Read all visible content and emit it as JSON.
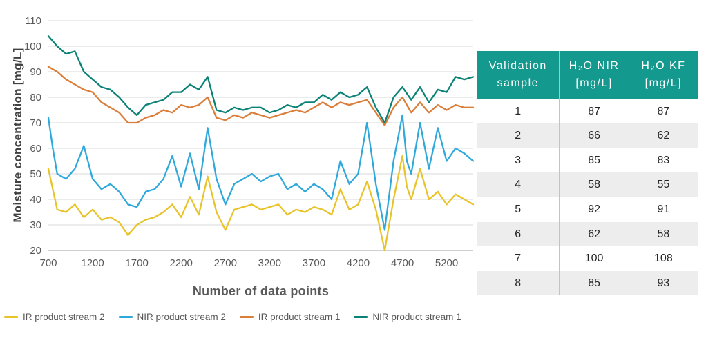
{
  "chart_data": {
    "type": "line",
    "title": "",
    "xlabel": "Number of data points",
    "ylabel": "Moisture concentration [mg/L]",
    "xlim": [
      700,
      5500
    ],
    "ylim": [
      20,
      110
    ],
    "xticks": [
      700,
      1200,
      1700,
      2200,
      2700,
      3200,
      3700,
      4200,
      4700,
      5200
    ],
    "yticks": [
      20,
      30,
      40,
      50,
      60,
      70,
      80,
      90,
      100,
      110
    ],
    "grid": "horizontal",
    "legend_position": "bottom",
    "series": [
      {
        "name": "IR product stream 2",
        "color": "#E9C32A",
        "points": [
          [
            700,
            52
          ],
          [
            750,
            44
          ],
          [
            800,
            36
          ],
          [
            900,
            35
          ],
          [
            1000,
            38
          ],
          [
            1100,
            33
          ],
          [
            1200,
            36
          ],
          [
            1300,
            32
          ],
          [
            1400,
            33
          ],
          [
            1500,
            31
          ],
          [
            1600,
            26
          ],
          [
            1700,
            30
          ],
          [
            1800,
            32
          ],
          [
            1900,
            33
          ],
          [
            2000,
            35
          ],
          [
            2100,
            38
          ],
          [
            2200,
            33
          ],
          [
            2300,
            41
          ],
          [
            2400,
            34
          ],
          [
            2500,
            49
          ],
          [
            2600,
            35
          ],
          [
            2700,
            28
          ],
          [
            2800,
            36
          ],
          [
            2900,
            37
          ],
          [
            3000,
            38
          ],
          [
            3100,
            36
          ],
          [
            3200,
            37
          ],
          [
            3300,
            38
          ],
          [
            3400,
            34
          ],
          [
            3500,
            36
          ],
          [
            3600,
            35
          ],
          [
            3700,
            37
          ],
          [
            3800,
            36
          ],
          [
            3900,
            34
          ],
          [
            4000,
            44
          ],
          [
            4100,
            36
          ],
          [
            4200,
            38
          ],
          [
            4300,
            47
          ],
          [
            4400,
            36
          ],
          [
            4500,
            20
          ],
          [
            4600,
            40
          ],
          [
            4700,
            57
          ],
          [
            4750,
            45
          ],
          [
            4800,
            40
          ],
          [
            4900,
            52
          ],
          [
            5000,
            40
          ],
          [
            5100,
            43
          ],
          [
            5200,
            38
          ],
          [
            5300,
            42
          ],
          [
            5400,
            40
          ],
          [
            5500,
            38
          ]
        ]
      },
      {
        "name": "NIR product stream 2",
        "color": "#2FA9DB",
        "points": [
          [
            700,
            72
          ],
          [
            750,
            60
          ],
          [
            800,
            50
          ],
          [
            900,
            48
          ],
          [
            1000,
            52
          ],
          [
            1100,
            61
          ],
          [
            1200,
            48
          ],
          [
            1300,
            44
          ],
          [
            1400,
            46
          ],
          [
            1500,
            43
          ],
          [
            1600,
            38
          ],
          [
            1700,
            37
          ],
          [
            1800,
            43
          ],
          [
            1900,
            44
          ],
          [
            2000,
            48
          ],
          [
            2100,
            57
          ],
          [
            2200,
            45
          ],
          [
            2300,
            58
          ],
          [
            2400,
            44
          ],
          [
            2500,
            68
          ],
          [
            2600,
            48
          ],
          [
            2700,
            38
          ],
          [
            2800,
            46
          ],
          [
            2900,
            48
          ],
          [
            3000,
            50
          ],
          [
            3100,
            47
          ],
          [
            3200,
            49
          ],
          [
            3300,
            50
          ],
          [
            3400,
            44
          ],
          [
            3500,
            46
          ],
          [
            3600,
            43
          ],
          [
            3700,
            46
          ],
          [
            3800,
            44
          ],
          [
            3900,
            40
          ],
          [
            4000,
            55
          ],
          [
            4100,
            46
          ],
          [
            4200,
            50
          ],
          [
            4300,
            70
          ],
          [
            4400,
            46
          ],
          [
            4500,
            28
          ],
          [
            4600,
            55
          ],
          [
            4700,
            73
          ],
          [
            4750,
            55
          ],
          [
            4800,
            50
          ],
          [
            4900,
            70
          ],
          [
            5000,
            52
          ],
          [
            5100,
            68
          ],
          [
            5200,
            55
          ],
          [
            5300,
            60
          ],
          [
            5400,
            58
          ],
          [
            5500,
            55
          ]
        ]
      },
      {
        "name": "IR product stream 1",
        "color": "#DA7E3A",
        "points": [
          [
            700,
            92
          ],
          [
            800,
            90
          ],
          [
            900,
            87
          ],
          [
            1000,
            85
          ],
          [
            1100,
            83
          ],
          [
            1200,
            82
          ],
          [
            1300,
            78
          ],
          [
            1400,
            76
          ],
          [
            1500,
            74
          ],
          [
            1600,
            70
          ],
          [
            1700,
            70
          ],
          [
            1800,
            72
          ],
          [
            1900,
            73
          ],
          [
            2000,
            75
          ],
          [
            2100,
            74
          ],
          [
            2200,
            77
          ],
          [
            2300,
            76
          ],
          [
            2400,
            77
          ],
          [
            2500,
            80
          ],
          [
            2600,
            72
          ],
          [
            2700,
            71
          ],
          [
            2800,
            73
          ],
          [
            2900,
            72
          ],
          [
            3000,
            74
          ],
          [
            3100,
            73
          ],
          [
            3200,
            72
          ],
          [
            3300,
            73
          ],
          [
            3400,
            74
          ],
          [
            3500,
            75
          ],
          [
            3600,
            74
          ],
          [
            3700,
            76
          ],
          [
            3800,
            78
          ],
          [
            3900,
            76
          ],
          [
            4000,
            78
          ],
          [
            4100,
            77
          ],
          [
            4200,
            78
          ],
          [
            4300,
            79
          ],
          [
            4400,
            74
          ],
          [
            4500,
            69
          ],
          [
            4600,
            76
          ],
          [
            4700,
            80
          ],
          [
            4800,
            74
          ],
          [
            4900,
            78
          ],
          [
            5000,
            74
          ],
          [
            5100,
            77
          ],
          [
            5200,
            75
          ],
          [
            5300,
            77
          ],
          [
            5400,
            76
          ],
          [
            5500,
            76
          ]
        ]
      },
      {
        "name": "NIR product stream 1",
        "color": "#0A8276",
        "points": [
          [
            700,
            104
          ],
          [
            800,
            100
          ],
          [
            900,
            97
          ],
          [
            1000,
            98
          ],
          [
            1100,
            90
          ],
          [
            1200,
            87
          ],
          [
            1300,
            84
          ],
          [
            1400,
            83
          ],
          [
            1500,
            80
          ],
          [
            1600,
            76
          ],
          [
            1700,
            73
          ],
          [
            1800,
            77
          ],
          [
            1900,
            78
          ],
          [
            2000,
            79
          ],
          [
            2100,
            82
          ],
          [
            2200,
            82
          ],
          [
            2300,
            85
          ],
          [
            2400,
            83
          ],
          [
            2500,
            88
          ],
          [
            2600,
            75
          ],
          [
            2700,
            74
          ],
          [
            2800,
            76
          ],
          [
            2900,
            75
          ],
          [
            3000,
            76
          ],
          [
            3100,
            76
          ],
          [
            3200,
            74
          ],
          [
            3300,
            75
          ],
          [
            3400,
            77
          ],
          [
            3500,
            76
          ],
          [
            3600,
            78
          ],
          [
            3700,
            78
          ],
          [
            3800,
            81
          ],
          [
            3900,
            79
          ],
          [
            4000,
            82
          ],
          [
            4100,
            80
          ],
          [
            4200,
            81
          ],
          [
            4300,
            84
          ],
          [
            4400,
            76
          ],
          [
            4500,
            70
          ],
          [
            4600,
            80
          ],
          [
            4700,
            84
          ],
          [
            4800,
            79
          ],
          [
            4900,
            84
          ],
          [
            5000,
            78
          ],
          [
            5100,
            83
          ],
          [
            5200,
            82
          ],
          [
            5300,
            88
          ],
          [
            5400,
            87
          ],
          [
            5500,
            88
          ]
        ]
      }
    ]
  },
  "table": {
    "header_color": "#14998F",
    "headers": [
      {
        "line1": "Validation",
        "line2": "sample"
      },
      {
        "line1": "H₂O NIR",
        "line2": "[mg/L]"
      },
      {
        "line1": "H₂O KF",
        "line2": "[mg/L]"
      }
    ],
    "rows": [
      [
        "1",
        "87",
        "87"
      ],
      [
        "2",
        "66",
        "62"
      ],
      [
        "3",
        "85",
        "83"
      ],
      [
        "4",
        "58",
        "55"
      ],
      [
        "5",
        "92",
        "91"
      ],
      [
        "6",
        "62",
        "58"
      ],
      [
        "7",
        "100",
        "108"
      ],
      [
        "8",
        "85",
        "93"
      ]
    ]
  }
}
